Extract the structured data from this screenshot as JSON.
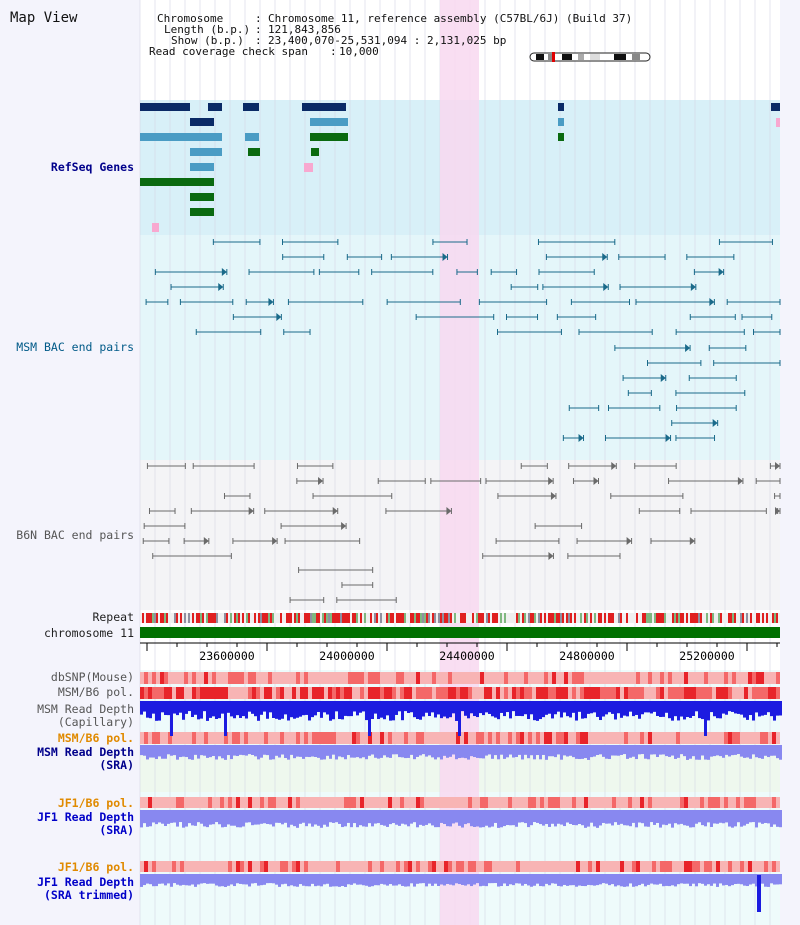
{
  "title": "Map View",
  "info": {
    "chromosome_label": "Chromosome",
    "chromosome_value": "Chromosome 11, reference assembly (C57BL/6J) (Build 37)",
    "length_label": "Length (b.p.)",
    "length_value": "121,843,856",
    "show_label": "Show (b.p.)",
    "show_value": "23,400,070-25,531,094 : 2,131,025 bp",
    "read_label": "Read coverage check span",
    "read_value": "10,000"
  },
  "tracks": {
    "refseq": "RefSeq Genes",
    "msm_bac": "MSM BAC end pairs",
    "b6n_bac": "B6N BAC end pairs",
    "repeat": "Repeat",
    "chromosome": "chromosome 11",
    "dbsnp": "dbSNP(Mouse)",
    "msm_b6_pol_1": "MSM/B6 pol.",
    "msm_depth_cap_1": "MSM Read Depth",
    "msm_depth_cap_2": "(Capillary)",
    "msm_b6_pol_2": "MSM/B6 pol.",
    "msm_depth_sra_1": "MSM Read Depth",
    "msm_depth_sra_2": "(SRA)",
    "jf1_pol_1": "JF1/B6 pol.",
    "jf1_depth_sra_1": "JF1 Read Depth",
    "jf1_depth_sra_2": "(SRA)",
    "jf1_pol_2": "JF1/B6 pol.",
    "jf1_depth_trim_1": "JF1 Read Depth",
    "jf1_depth_trim_2": "(SRA trimmed)"
  },
  "axis": {
    "ticks": [
      "23600000",
      "24000000",
      "24400000",
      "24800000",
      "25200000"
    ]
  },
  "colors": {
    "refseq_bg": "#d8f0f8",
    "msm_bg": "#e4f6fa",
    "b6n_bg": "#f4f4f6",
    "highlight": "#f8d8f0",
    "chromosome_bar": "#007000",
    "gene_dark": "#0a2a66",
    "gene_mid": "#4a9cc4",
    "gene_green": "#0a6a10",
    "msm_pair": "#1a6a8a",
    "b6n_pair": "#6a6a6a",
    "depth_blue": "#1c1ce0",
    "depth_light": "#8888f0"
  }
}
